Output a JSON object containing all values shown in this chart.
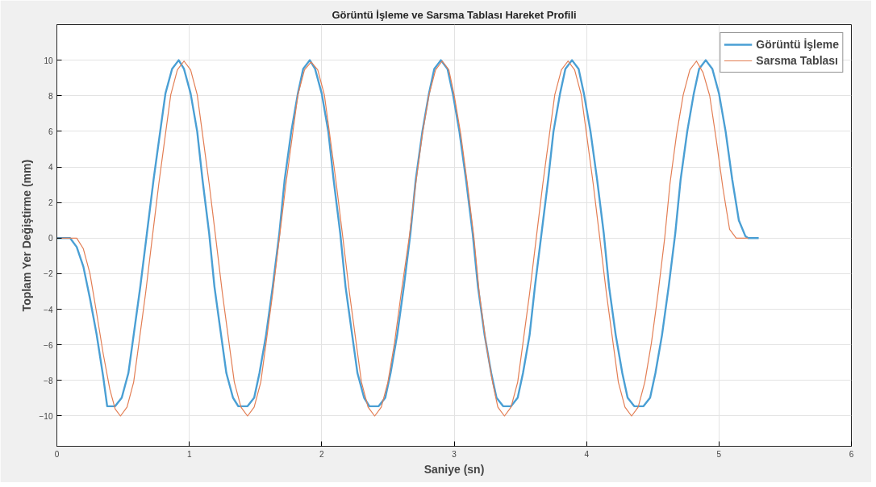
{
  "chart_data": {
    "type": "line",
    "title": "Görüntü İşleme ve Sarsma Tablası Hareket Profili",
    "xlabel": "Saniye (sn)",
    "ylabel": "Toplam Yer Değiştirme (mm)",
    "xlim": [
      0,
      6
    ],
    "ylim": [
      -11.7,
      12
    ],
    "xticks": [
      0,
      1,
      2,
      3,
      4,
      5,
      6
    ],
    "yticks": [
      -10,
      -8,
      -6,
      -4,
      -2,
      0,
      2,
      4,
      6,
      8,
      10
    ],
    "grid": true,
    "legend": "top right",
    "line_style": "solid",
    "series": [
      {
        "name": "Görüntü İşleme",
        "color": "#4a9fd4",
        "x": [
          0,
          0.1,
          0.15,
          0.2,
          0.25,
          0.3,
          0.35,
          0.38,
          0.44,
          0.49,
          0.54,
          0.58,
          0.63,
          0.68,
          0.73,
          0.78,
          0.82,
          0.87,
          0.92,
          0.96,
          1.01,
          1.06,
          1.1,
          1.15,
          1.19,
          1.24,
          1.28,
          1.33,
          1.37,
          1.44,
          1.49,
          1.53,
          1.58,
          1.63,
          1.68,
          1.72,
          1.77,
          1.82,
          1.86,
          1.91,
          1.95,
          2.0,
          2.05,
          2.09,
          2.14,
          2.18,
          2.23,
          2.27,
          2.32,
          2.36,
          2.43,
          2.48,
          2.52,
          2.57,
          2.62,
          2.67,
          2.71,
          2.76,
          2.81,
          2.85,
          2.9,
          2.95,
          2.99,
          3.04,
          3.09,
          3.14,
          3.18,
          3.23,
          3.28,
          3.32,
          3.37,
          3.43,
          3.48,
          3.52,
          3.57,
          3.61,
          3.66,
          3.71,
          3.75,
          3.8,
          3.84,
          3.89,
          3.94,
          3.98,
          4.03,
          4.08,
          4.13,
          4.17,
          4.22,
          4.27,
          4.31,
          4.36,
          4.43,
          4.48,
          4.52,
          4.57,
          4.62,
          4.67,
          4.71,
          4.76,
          4.81,
          4.85,
          4.9,
          4.95,
          5.0,
          5.05,
          5.1,
          5.15,
          5.2,
          5.22,
          5.3
        ],
        "values": [
          0,
          0,
          -0.5,
          -1.6,
          -3.4,
          -5.4,
          -7.8,
          -9.45,
          -9.45,
          -8.97,
          -7.59,
          -5.44,
          -2.73,
          0.27,
          3.27,
          5.98,
          8.13,
          9.51,
          10,
          9.51,
          8.13,
          5.98,
          3.27,
          0.27,
          -2.73,
          -5.44,
          -7.59,
          -8.97,
          -9.45,
          -9.45,
          -8.97,
          -7.59,
          -5.44,
          -2.73,
          0.27,
          3.27,
          5.98,
          8.13,
          9.51,
          10,
          9.51,
          8.13,
          5.98,
          3.27,
          0.27,
          -2.73,
          -5.44,
          -7.59,
          -8.97,
          -9.45,
          -9.45,
          -8.97,
          -7.59,
          -5.44,
          -2.73,
          0.27,
          3.27,
          5.98,
          8.13,
          9.51,
          10,
          9.51,
          8.13,
          5.98,
          3.27,
          0.27,
          -2.73,
          -5.44,
          -7.59,
          -8.97,
          -9.45,
          -9.45,
          -8.97,
          -7.59,
          -5.44,
          -2.73,
          0.27,
          3.27,
          5.98,
          8.13,
          9.51,
          10,
          9.51,
          8.13,
          5.98,
          3.27,
          0.27,
          -2.73,
          -5.44,
          -7.59,
          -8.97,
          -9.45,
          -9.45,
          -8.97,
          -7.59,
          -5.44,
          -2.73,
          0.27,
          3.27,
          5.98,
          8.13,
          9.51,
          10,
          9.51,
          8.13,
          6.0,
          3.3,
          1.0,
          0.1,
          0,
          0
        ]
      },
      {
        "name": "Sarsma Tablası",
        "color": "#e37e54",
        "x": [
          0,
          0.15,
          0.2,
          0.25,
          0.3,
          0.35,
          0.4,
          0.44,
          0.48,
          0.53,
          0.58,
          0.62,
          0.67,
          0.72,
          0.77,
          0.82,
          0.86,
          0.91,
          0.96,
          1.01,
          1.06,
          1.1,
          1.15,
          1.2,
          1.25,
          1.3,
          1.34,
          1.39,
          1.44,
          1.49,
          1.54,
          1.58,
          1.63,
          1.68,
          1.73,
          1.78,
          1.82,
          1.87,
          1.92,
          1.97,
          2.02,
          2.06,
          2.11,
          2.16,
          2.21,
          2.26,
          2.3,
          2.35,
          2.4,
          2.45,
          2.5,
          2.55,
          2.6,
          2.66,
          2.71,
          2.76,
          2.81,
          2.86,
          2.91,
          2.96,
          3.0,
          3.05,
          3.1,
          3.15,
          3.19,
          3.24,
          3.29,
          3.33,
          3.38,
          3.43,
          3.48,
          3.52,
          3.57,
          3.62,
          3.67,
          3.72,
          3.76,
          3.81,
          3.86,
          3.91,
          3.96,
          4.0,
          4.05,
          4.1,
          4.15,
          4.2,
          4.24,
          4.29,
          4.34,
          4.39,
          4.44,
          4.49,
          4.54,
          4.59,
          4.63,
          4.68,
          4.73,
          4.78,
          4.83,
          4.88,
          4.93,
          4.98,
          5.03,
          5.08,
          5.13,
          5.22
        ],
        "values": [
          0,
          0,
          -0.6,
          -2.0,
          -4.2,
          -6.5,
          -8.5,
          -9.6,
          -10,
          -9.5,
          -8.09,
          -5.88,
          -3.1,
          0,
          3.06,
          5.84,
          8.05,
          9.46,
          9.95,
          9.46,
          8.05,
          5.84,
          3.06,
          0,
          -3.1,
          -5.88,
          -8.09,
          -9.5,
          -10,
          -9.5,
          -8.09,
          -5.88,
          -3.1,
          0,
          3.06,
          5.84,
          8.05,
          9.46,
          9.9,
          9.46,
          8.05,
          5.84,
          3.06,
          0,
          -3.1,
          -5.88,
          -8.09,
          -9.5,
          -10,
          -9.5,
          -8.09,
          -5.88,
          -3.1,
          0,
          3.06,
          5.84,
          8.05,
          9.46,
          9.95,
          9.46,
          8.05,
          5.84,
          3.06,
          0,
          -3.1,
          -5.88,
          -8.09,
          -9.5,
          -10,
          -9.5,
          -8.09,
          -5.88,
          -3.1,
          0,
          3.06,
          5.84,
          8.05,
          9.46,
          9.95,
          9.46,
          8.05,
          5.84,
          3.06,
          0,
          -3.1,
          -5.88,
          -8.09,
          -9.5,
          -10,
          -9.5,
          -8.09,
          -5.88,
          -3.1,
          0,
          3.06,
          5.84,
          8.05,
          9.46,
          9.95,
          9.3,
          8.0,
          5.5,
          2.8,
          0.5,
          0,
          0
        ]
      }
    ]
  }
}
